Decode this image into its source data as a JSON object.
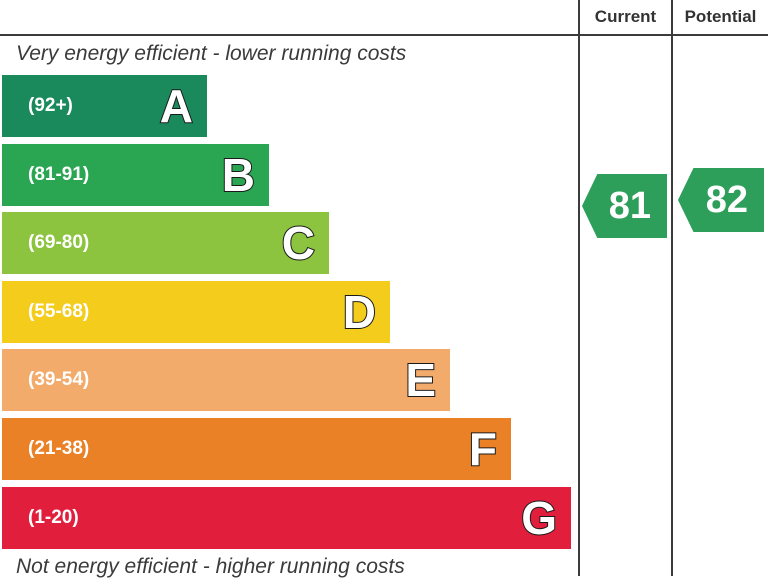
{
  "headers": {
    "current": "Current",
    "potential": "Potential"
  },
  "captions": {
    "top": "Very energy efficient - lower running costs",
    "bottom": "Not energy efficient - higher running costs"
  },
  "colors": {
    "A": "#1a8a5c",
    "B": "#2aa653",
    "C": "#8cc43f",
    "D": "#f3cc1c",
    "E": "#f2ab6b",
    "F": "#ea8127",
    "G": "#e11f3c",
    "rating_arrow": "#2d9f5a"
  },
  "chart_data": {
    "type": "bar",
    "categories": [
      "A",
      "B",
      "C",
      "D",
      "E",
      "F",
      "G"
    ],
    "ranges": [
      "(92+)",
      "(81-91)",
      "(69-80)",
      "(55-68)",
      "(39-54)",
      "(21-38)",
      "(1-20)"
    ],
    "ratings": {
      "current": 81,
      "potential": 82
    },
    "current_band": "B",
    "potential_band": "B"
  }
}
